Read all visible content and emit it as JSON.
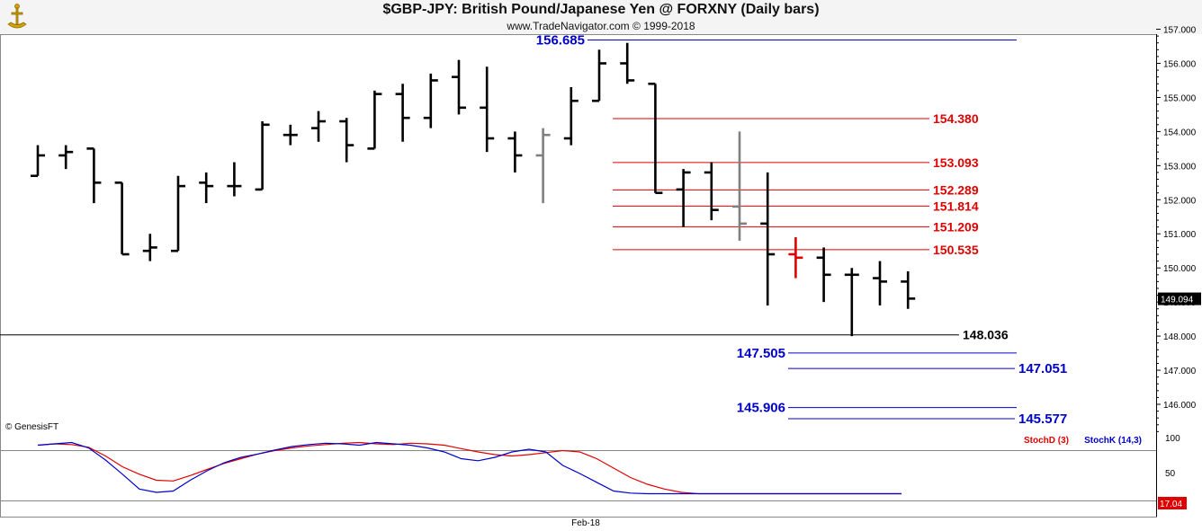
{
  "header": {
    "title": "$GBP-JPY:  British Pound/Japanese Yen @ FORXNY  (Daily bars)",
    "subtitle": "www.TradeNavigator.com © 1999-2018"
  },
  "copyright": "© GenesisFT",
  "colors": {
    "bar": "#000000",
    "gray_bar": "#808080",
    "red_bar": "#e00000",
    "red_level": "#cc0000",
    "blue_level": "#0000cc",
    "stoch_d": "#e00000",
    "stoch_k": "#0000cc"
  },
  "chart_data": [
    {
      "type": "ohlc",
      "title": "$GBP-JPY:  British Pound/Japanese Yen @ FORXNY  (Daily bars)",
      "x_tick_labels": [
        "Feb-18"
      ],
      "y_ticks": [
        "157.000",
        "156.000",
        "155.000",
        "154.000",
        "153.000",
        "152.000",
        "151.000",
        "150.000",
        "149.000",
        "148.000",
        "147.000",
        "146.000"
      ],
      "ylim": [
        145.5,
        157.2
      ],
      "last_price": "149.094",
      "bars": [
        {
          "o": 152.7,
          "h": 153.6,
          "l": 152.7,
          "c": 153.3,
          "color": "black"
        },
        {
          "o": 153.3,
          "h": 153.6,
          "l": 152.9,
          "c": 153.4,
          "color": "black"
        },
        {
          "o": 153.5,
          "h": 153.5,
          "l": 151.9,
          "c": 152.5,
          "color": "black"
        },
        {
          "o": 152.5,
          "h": 152.5,
          "l": 150.4,
          "c": 150.4,
          "color": "black"
        },
        {
          "o": 150.5,
          "h": 151.0,
          "l": 150.2,
          "c": 150.6,
          "color": "black"
        },
        {
          "o": 150.5,
          "h": 152.7,
          "l": 150.5,
          "c": 152.4,
          "color": "black"
        },
        {
          "o": 152.5,
          "h": 152.8,
          "l": 151.9,
          "c": 152.4,
          "color": "black"
        },
        {
          "o": 152.4,
          "h": 153.1,
          "l": 152.1,
          "c": 152.4,
          "color": "black"
        },
        {
          "o": 152.3,
          "h": 154.3,
          "l": 152.3,
          "c": 154.2,
          "color": "black"
        },
        {
          "o": 153.9,
          "h": 154.2,
          "l": 153.6,
          "c": 153.9,
          "color": "black"
        },
        {
          "o": 154.1,
          "h": 154.6,
          "l": 153.7,
          "c": 154.3,
          "color": "black"
        },
        {
          "o": 154.3,
          "h": 154.4,
          "l": 153.1,
          "c": 153.6,
          "color": "black"
        },
        {
          "o": 153.5,
          "h": 155.2,
          "l": 153.5,
          "c": 155.1,
          "color": "black"
        },
        {
          "o": 155.1,
          "h": 155.4,
          "l": 153.7,
          "c": 154.4,
          "color": "black"
        },
        {
          "o": 154.4,
          "h": 155.7,
          "l": 154.1,
          "c": 155.5,
          "color": "black"
        },
        {
          "o": 155.6,
          "h": 156.1,
          "l": 154.5,
          "c": 154.7,
          "color": "black"
        },
        {
          "o": 154.7,
          "h": 155.9,
          "l": 153.4,
          "c": 153.8,
          "color": "black"
        },
        {
          "o": 153.8,
          "h": 154.0,
          "l": 152.8,
          "c": 153.3,
          "color": "black"
        },
        {
          "o": 153.3,
          "h": 154.1,
          "l": 151.9,
          "c": 153.9,
          "color": "gray"
        },
        {
          "o": 153.8,
          "h": 155.3,
          "l": 153.6,
          "c": 154.9,
          "color": "black"
        },
        {
          "o": 154.9,
          "h": 156.4,
          "l": 154.9,
          "c": 156.0,
          "color": "black"
        },
        {
          "o": 156.0,
          "h": 156.6,
          "l": 155.4,
          "c": 155.5,
          "color": "black"
        },
        {
          "o": 155.4,
          "h": 155.4,
          "l": 152.2,
          "c": 152.2,
          "color": "black"
        },
        {
          "o": 152.3,
          "h": 152.9,
          "l": 151.2,
          "c": 152.8,
          "color": "black"
        },
        {
          "o": 152.8,
          "h": 153.1,
          "l": 151.4,
          "c": 151.7,
          "color": "black"
        },
        {
          "o": 151.8,
          "h": 154.0,
          "l": 150.8,
          "c": 151.3,
          "color": "gray"
        },
        {
          "o": 151.3,
          "h": 152.8,
          "l": 148.9,
          "c": 150.4,
          "color": "black"
        },
        {
          "o": 150.4,
          "h": 150.9,
          "l": 149.7,
          "c": 150.3,
          "color": "red"
        },
        {
          "o": 150.3,
          "h": 150.6,
          "l": 149.0,
          "c": 149.8,
          "color": "black"
        },
        {
          "o": 149.8,
          "h": 150.0,
          "l": 148.0,
          "c": 149.8,
          "color": "black"
        },
        {
          "o": 149.7,
          "h": 150.2,
          "l": 148.9,
          "c": 149.6,
          "color": "black"
        },
        {
          "o": 149.6,
          "h": 149.9,
          "l": 148.8,
          "c": 149.1,
          "color": "black"
        }
      ],
      "levels": [
        {
          "label": "156.685",
          "value": 156.685,
          "color": "blue",
          "label_side": "left"
        },
        {
          "label": "154.380",
          "value": 154.38,
          "color": "red",
          "label_side": "right"
        },
        {
          "label": "153.093",
          "value": 153.093,
          "color": "red",
          "label_side": "right"
        },
        {
          "label": "152.289",
          "value": 152.289,
          "color": "red",
          "label_side": "right"
        },
        {
          "label": "151.814",
          "value": 151.814,
          "color": "red",
          "label_side": "right"
        },
        {
          "label": "151.209",
          "value": 151.209,
          "color": "red",
          "label_side": "right"
        },
        {
          "label": "150.535",
          "value": 150.535,
          "color": "red",
          "label_side": "right"
        },
        {
          "label": "148.036",
          "value": 148.036,
          "color": "black",
          "label_side": "right"
        },
        {
          "label": "147.505",
          "value": 147.505,
          "color": "blue",
          "label_side": "left"
        },
        {
          "label": "147.051",
          "value": 147.051,
          "color": "blue",
          "label_side": "right"
        },
        {
          "label": "145.906",
          "value": 145.906,
          "color": "blue",
          "label_side": "left"
        },
        {
          "label": "145.577",
          "value": 145.577,
          "color": "blue",
          "label_side": "right"
        }
      ]
    },
    {
      "type": "line",
      "legend": [
        "StochD (3)",
        "StochK (14,3)"
      ],
      "y_ticks": [
        "100",
        "50"
      ],
      "ylim": [
        0,
        100
      ],
      "last_value": "17.04",
      "series": [
        {
          "name": "StochD (3)",
          "color": "red",
          "values": [
            90,
            92,
            91,
            87,
            74,
            58,
            47,
            38,
            37,
            45,
            54,
            63,
            70,
            77,
            82,
            86,
            89,
            91,
            93,
            94,
            92,
            91,
            93,
            92,
            90,
            85,
            80,
            76,
            74,
            76,
            79,
            82,
            80,
            70,
            56,
            42,
            32,
            25,
            20,
            18,
            18,
            18,
            18,
            18,
            18,
            18,
            18,
            18,
            18,
            18,
            18,
            18
          ]
        },
        {
          "name": "StochK (14,3)",
          "color": "blue",
          "values": [
            90,
            92,
            94,
            86,
            68,
            47,
            25,
            20,
            22,
            38,
            52,
            64,
            72,
            77,
            83,
            88,
            91,
            93,
            92,
            90,
            94,
            92,
            90,
            86,
            80,
            70,
            67,
            72,
            80,
            84,
            80,
            60,
            48,
            35,
            22,
            19,
            18,
            18,
            18,
            18,
            18,
            18,
            18,
            18,
            18,
            18,
            18,
            18,
            18,
            18,
            18,
            18
          ]
        }
      ]
    }
  ]
}
